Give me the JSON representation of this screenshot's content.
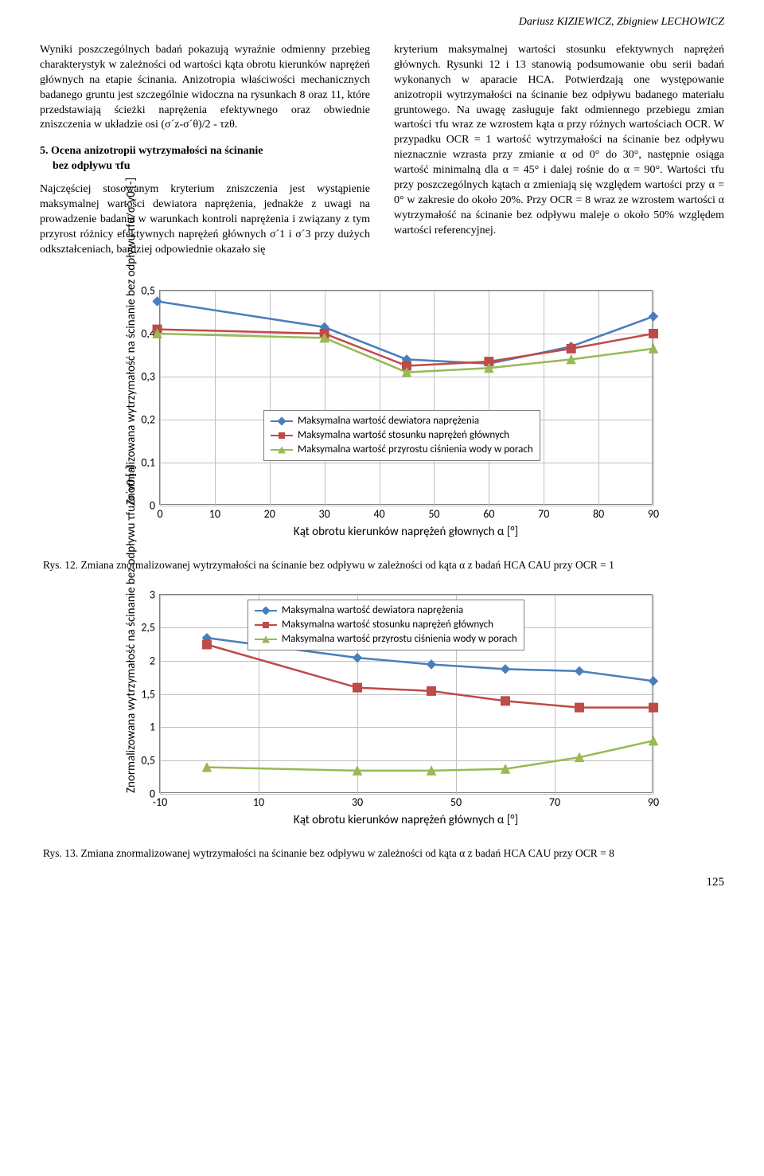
{
  "authors": "Dariusz KIZIEWICZ, Zbigniew LECHOWICZ",
  "left_col": {
    "p1": "Wyniki poszczególnych badań pokazują wyraźnie odmienny przebieg charakterystyk w zależności od wartości kąta obrotu kierunków naprężeń głównych na etapie ścinania. Anizotropia właściwości mechanicznych badanego gruntu jest szczególnie widoczna na rysunkach 8 oraz 11, które przedstawiają ścieżki naprężenia efektywnego oraz obwiednie zniszczenia w układzie osi (σ´z-σ´θ)/2 - τzθ.",
    "heading_num": "5.",
    "heading_line1": "Ocena anizotropii wytrzymałości na ścinanie",
    "heading_line2": "bez odpływu τfu",
    "p2": "Najczęściej stosowanym kryterium zniszczenia jest wystąpienie maksymalnej wartości dewiatora naprężenia, jednakże z uwagi na prowadzenie badania w warunkach kontroli naprężenia i związany z tym przyrost różnicy efektywnych naprężeń głównych σ´1 i σ´3 przy dużych odkształceniach, bardziej odpowiednie okazało się"
  },
  "right_col": {
    "p1": "kryterium maksymalnej wartości stosunku efektywnych naprężeń głównych. Rysunki 12 i 13 stanowią podsumowanie obu serii badań wykonanych w aparacie HCA. Potwierdzają one występowanie anizotropii wytrzymałości na ścinanie bez odpływu badanego materiału gruntowego. Na uwagę zasługuje fakt odmiennego przebiegu zmian wartości τfu wraz ze wzrostem kąta α przy różnych wartościach OCR. W przypadku OCR = 1 wartość wytrzymałości na ścinanie bez odpływu nieznacznie wzrasta przy zmianie α od 0° do 30°, następnie osiąga wartość minimalną dla α = 45° i dalej rośnie do α = 90°. Wartości τfu przy poszczególnych kątach α zmieniają się względem wartości przy α = 0° w zakresie do około 20%. Przy OCR = 8 wraz ze wzrostem wartości α wytrzymałość na ścinanie bez odpływu maleje o około 50% względem wartości referencyjnej."
  },
  "legend": {
    "s1": "Maksymalna wartość dewiatora naprężenia",
    "s2": "Maksymalna wartość stosunku naprężeń głównych",
    "s3": "Maksymalna wartość przyrostu ciśnienia wody w porach"
  },
  "colors": {
    "s1": "#4a7ebb",
    "s2": "#be4b48",
    "s3": "#98b954",
    "grid": "#c0c0c0",
    "border": "#808080"
  },
  "chart1": {
    "ylabel": "Znormalizowana wytrzymałość na ścinanie bez odpływu τfu/σ´v0 [-]",
    "xlabel": "Kąt obrotu kierunków naprężeń głownych α [°]",
    "xlim": [
      0,
      90
    ],
    "ylim": [
      0,
      0.5
    ],
    "xticks": [
      0,
      10,
      20,
      30,
      40,
      50,
      60,
      70,
      80,
      90
    ],
    "yticks": [
      0,
      0.1,
      0.2,
      0.3,
      0.4,
      0.5
    ],
    "ytick_labels": [
      "0",
      "0,1",
      "0,2",
      "0,3",
      "0,4",
      "0,5"
    ],
    "series": {
      "s1": [
        [
          -0.5,
          0.475
        ],
        [
          30,
          0.415
        ],
        [
          45,
          0.34
        ],
        [
          60,
          0.33
        ],
        [
          75,
          0.37
        ],
        [
          90,
          0.44
        ]
      ],
      "s2": [
        [
          -0.5,
          0.41
        ],
        [
          30,
          0.4
        ],
        [
          45,
          0.325
        ],
        [
          60,
          0.335
        ],
        [
          75,
          0.365
        ],
        [
          90,
          0.4
        ]
      ],
      "s3": [
        [
          -0.5,
          0.4
        ],
        [
          30,
          0.39
        ],
        [
          45,
          0.31
        ],
        [
          60,
          0.32
        ],
        [
          75,
          0.34
        ],
        [
          90,
          0.365
        ]
      ]
    },
    "caption": "Rys. 12. Zmiana znormalizowanej wytrzymałości na ścinanie bez odpływu w zależności od kąta α z badań HCA CAU przy OCR = 1"
  },
  "chart2": {
    "ylabel": "Znormalizowana wytrzymałość na ścinanie bez odpływu τfu/σ´v0 [-]",
    "xlabel": "Kąt obrotu kierunków naprężeń głównych α [°]",
    "xlim": [
      -10,
      90
    ],
    "ylim": [
      0,
      3
    ],
    "xticks": [
      -10,
      10,
      30,
      50,
      70,
      90
    ],
    "yticks": [
      0,
      0.5,
      1,
      1.5,
      2,
      2.5,
      3
    ],
    "ytick_labels": [
      "0",
      "0,5",
      "1",
      "1,5",
      "2",
      "2,5",
      "3"
    ],
    "series": {
      "s1": [
        [
          -0.5,
          2.35
        ],
        [
          30,
          2.05
        ],
        [
          45,
          1.95
        ],
        [
          60,
          1.88
        ],
        [
          75,
          1.85
        ],
        [
          90,
          1.7
        ]
      ],
      "s2": [
        [
          -0.5,
          2.25
        ],
        [
          30,
          1.6
        ],
        [
          45,
          1.55
        ],
        [
          60,
          1.4
        ],
        [
          75,
          1.3
        ],
        [
          90,
          1.3
        ]
      ],
      "s3": [
        [
          -0.5,
          0.4
        ],
        [
          30,
          0.35
        ],
        [
          45,
          0.35
        ],
        [
          60,
          0.375
        ],
        [
          75,
          0.55
        ],
        [
          90,
          0.8
        ]
      ]
    },
    "caption": "Rys. 13. Zmiana znormalizowanej wytrzymałości na ścinanie bez odpływu w zależności od kąta α z badań HCA CAU przy OCR = 8"
  },
  "page_number": "125"
}
